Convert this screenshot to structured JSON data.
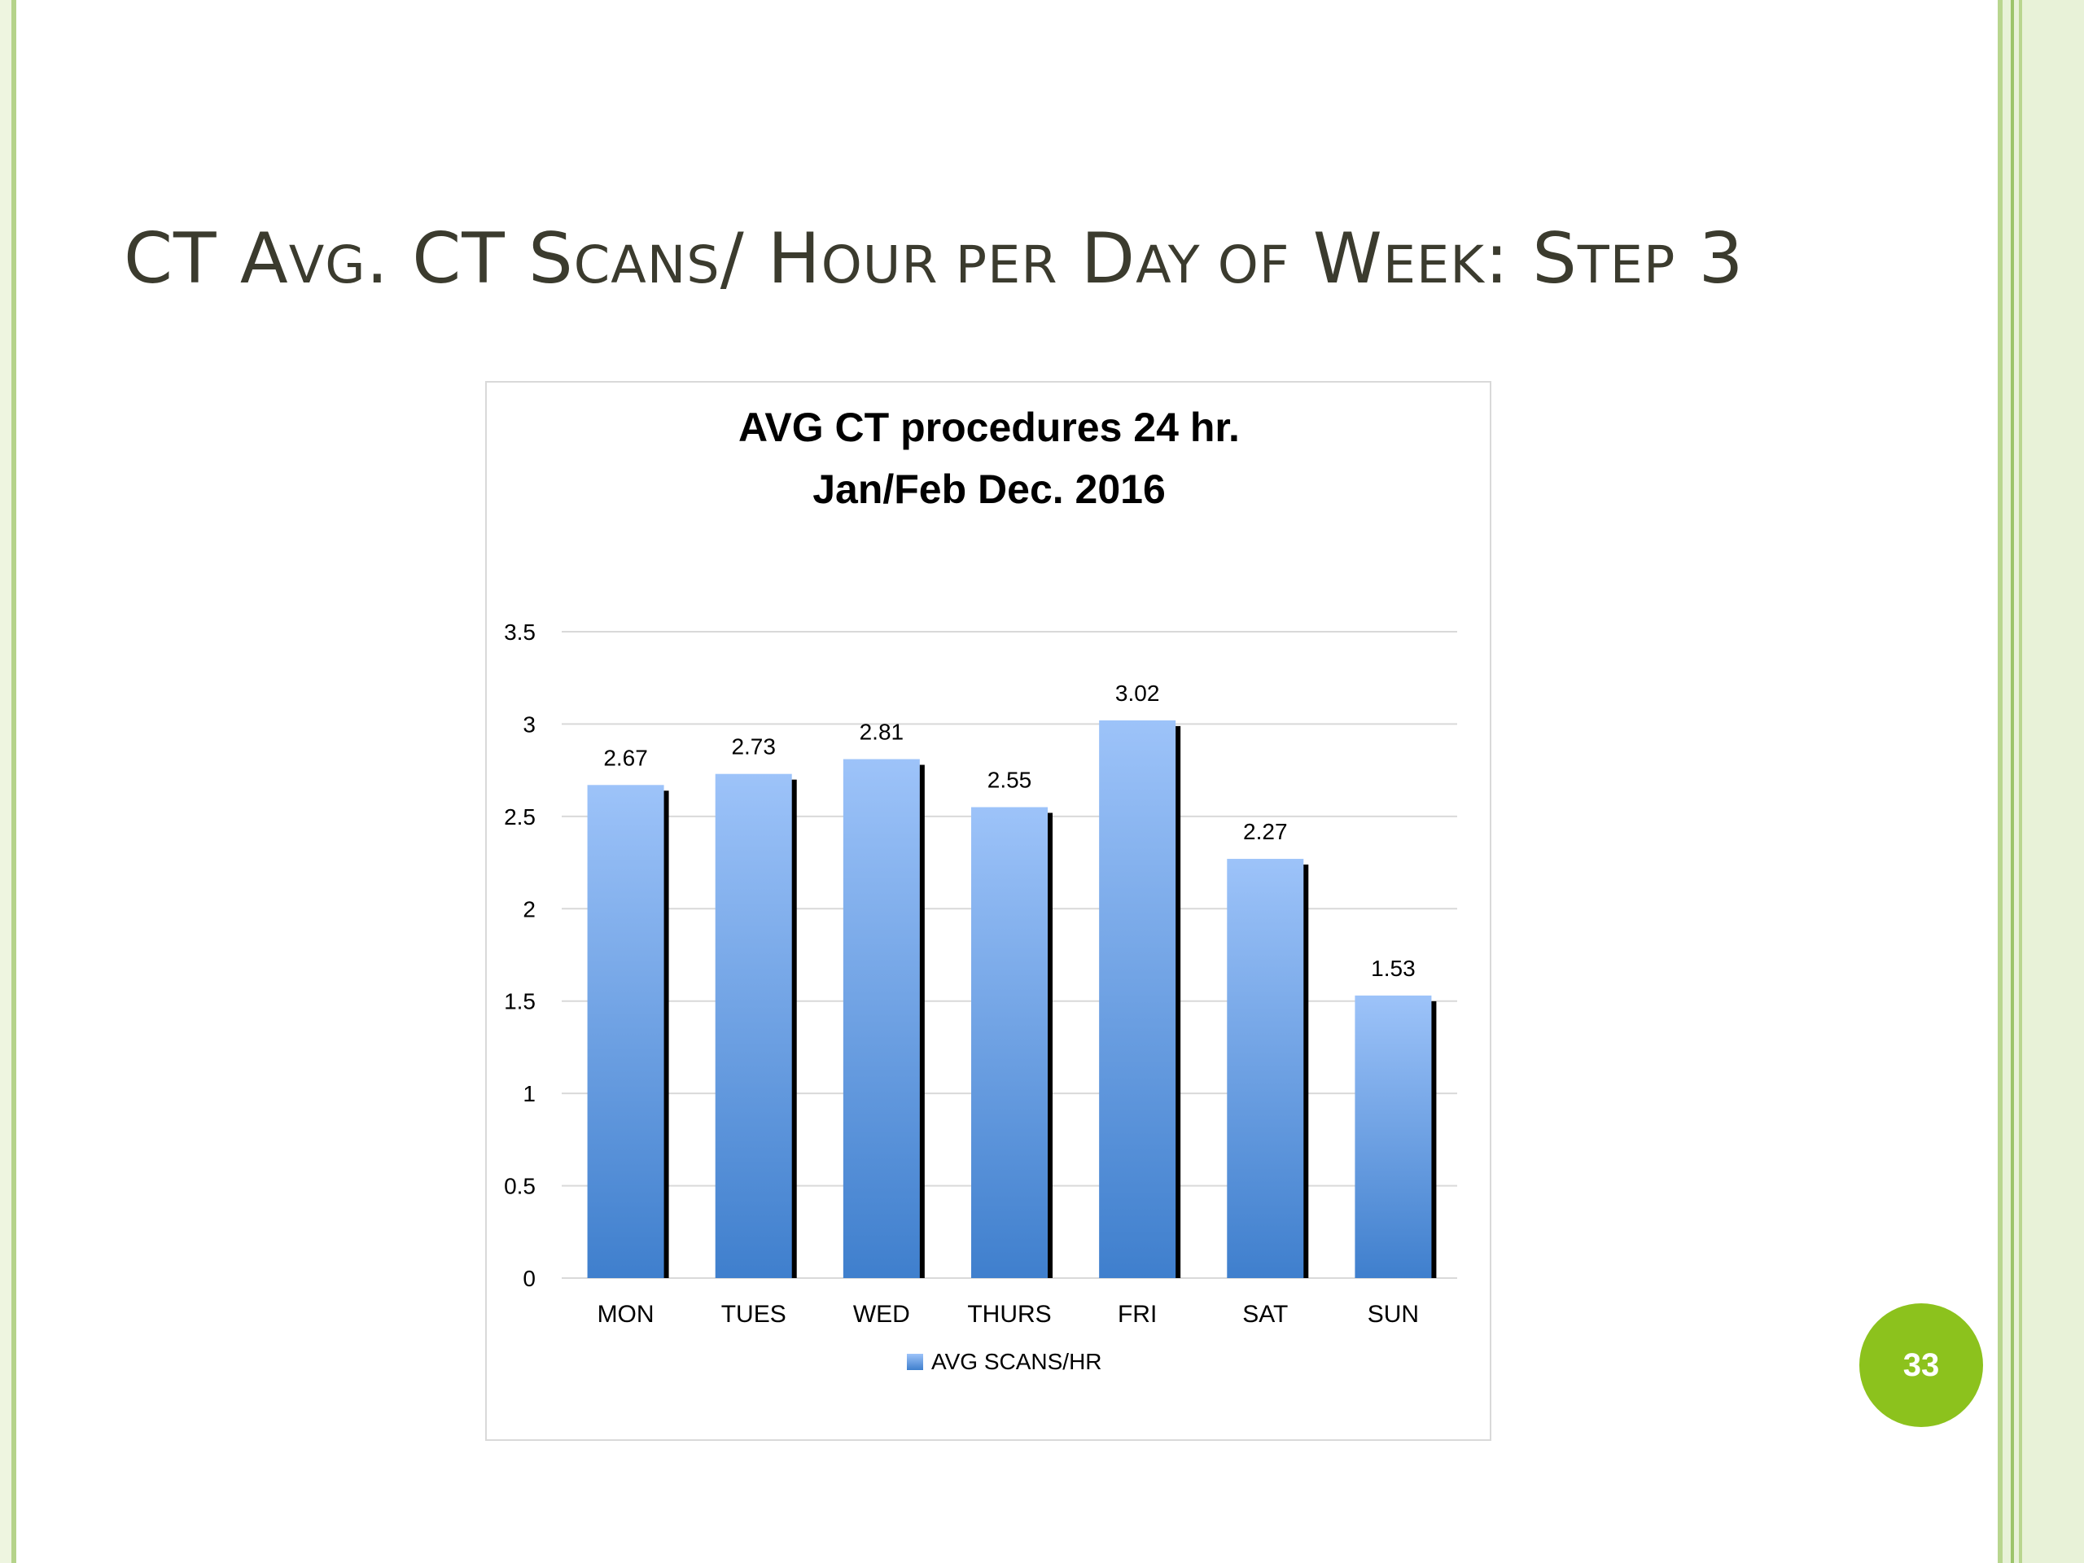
{
  "slide": {
    "title_parts": [
      {
        "text": "CT A",
        "sc": false
      },
      {
        "text": "VG",
        "sc": true
      },
      {
        "text": ". CT S",
        "sc": false
      },
      {
        "text": "CANS",
        "sc": true
      },
      {
        "text": "/ H",
        "sc": false
      },
      {
        "text": "OUR PER",
        "sc": true
      },
      {
        "text": " D",
        "sc": false
      },
      {
        "text": "AY OF",
        "sc": true
      },
      {
        "text": " W",
        "sc": false
      },
      {
        "text": "EEK",
        "sc": true
      },
      {
        "text": ": S",
        "sc": false
      },
      {
        "text": "TEP",
        "sc": true
      },
      {
        "text": " 3",
        "sc": false
      }
    ],
    "page_number": "33"
  },
  "colors": {
    "bar_top": "#9dc3f9",
    "bar_bottom": "#3f7fcd",
    "bar_shadow": "#000000",
    "gridline": "#d9d9d9",
    "page_badge": "#8cc21d",
    "title_text": "#3b3b2e"
  },
  "chart_data": {
    "type": "bar",
    "title_lines": [
      "AVG CT procedures  24 hr.",
      "Jan/Feb Dec. 2016"
    ],
    "categories": [
      "MON",
      "TUES",
      "WED",
      "THURS",
      "FRI",
      "SAT",
      "SUN"
    ],
    "series": [
      {
        "name": "AVG SCANS/HR",
        "values": [
          2.67,
          2.73,
          2.81,
          2.55,
          3.02,
          2.27,
          1.53
        ]
      }
    ],
    "value_labels": [
      "2.67",
      "2.73",
      "2.81",
      "2.55",
      "3.02",
      "2.27",
      "1.53"
    ],
    "ylim": [
      0,
      3.5
    ],
    "yticks": [
      "0",
      "0.5",
      "1",
      "1.5",
      "2",
      "2.5",
      "3",
      "3.5"
    ],
    "xlabel": "",
    "ylabel": "",
    "grid": true,
    "legend_position": "bottom"
  }
}
